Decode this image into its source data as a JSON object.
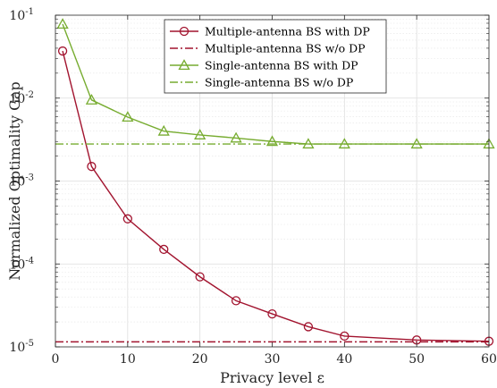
{
  "chart_data": {
    "type": "line",
    "xlabel": "Privacy level ε",
    "ylabel": "Normalized Optimality Gap",
    "xlim": [
      0,
      60
    ],
    "ylim": [
      1e-05,
      0.1
    ],
    "yscale": "log",
    "grid": true,
    "legend_position": "top-right",
    "x_ticks": [
      "0",
      "10",
      "20",
      "30",
      "40",
      "50",
      "60"
    ],
    "y_ticks": [
      {
        "base": "10",
        "exp": "-5"
      },
      {
        "base": "10",
        "exp": "-4"
      },
      {
        "base": "10",
        "exp": "-3"
      },
      {
        "base": "10",
        "exp": "-2"
      },
      {
        "base": "10",
        "exp": "-1"
      }
    ],
    "series": [
      {
        "name": "Multiple-antenna BS with DP",
        "color": "#a2142f",
        "line": "solid",
        "marker": "circle",
        "x": [
          1,
          5,
          10,
          15,
          20,
          25,
          30,
          35,
          40,
          50,
          60
        ],
        "y": [
          0.037,
          0.0015,
          0.00035,
          0.00015,
          7e-05,
          3.6e-05,
          2.5e-05,
          1.75e-05,
          1.35e-05,
          1.21e-05,
          1.17e-05
        ]
      },
      {
        "name": "Multiple-antenna BS w/o DP",
        "color": "#a2142f",
        "line": "dashdot",
        "marker": "none",
        "x": [
          0,
          60
        ],
        "y": [
          1.15e-05,
          1.15e-05
        ]
      },
      {
        "name": "Single-antenna BS with DP",
        "color": "#77ac30",
        "line": "solid",
        "marker": "triangle",
        "x": [
          1,
          5,
          10,
          15,
          20,
          25,
          30,
          35,
          40,
          50,
          60
        ],
        "y": [
          0.078,
          0.0095,
          0.0059,
          0.004,
          0.0036,
          0.0033,
          0.003,
          0.0028,
          0.0028,
          0.0028,
          0.0028
        ]
      },
      {
        "name": "Single-antenna BS w/o DP",
        "color": "#77ac30",
        "line": "dashdot",
        "marker": "none",
        "x": [
          0,
          60
        ],
        "y": [
          0.0028,
          0.0028
        ]
      }
    ]
  }
}
